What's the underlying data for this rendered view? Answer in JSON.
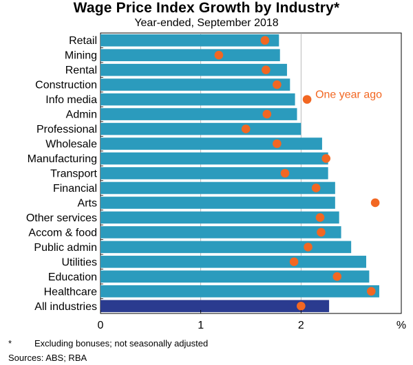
{
  "chart_data": {
    "type": "bar",
    "orientation": "horizontal",
    "title": "Wage Price Index Growth by Industry*",
    "subtitle": "Year-ended, September 2018",
    "categories": [
      "Retail",
      "Mining",
      "Rental",
      "Construction",
      "Info media",
      "Admin",
      "Professional",
      "Wholesale",
      "Manufacturing",
      "Transport",
      "Financial",
      "Arts",
      "Other services",
      "Accom & food",
      "Public admin",
      "Utilities",
      "Education",
      "Healthcare",
      "All industries"
    ],
    "series": [
      {
        "name": "Year-ended, September 2018",
        "type": "bar",
        "values": [
          1.78,
          1.79,
          1.86,
          1.89,
          1.94,
          1.96,
          2.0,
          2.21,
          2.27,
          2.27,
          2.34,
          2.34,
          2.38,
          2.4,
          2.5,
          2.65,
          2.68,
          2.78,
          2.28
        ]
      },
      {
        "name": "One year ago",
        "type": "dot",
        "values": [
          1.64,
          1.18,
          1.65,
          1.76,
          null,
          1.66,
          1.45,
          1.76,
          2.25,
          1.84,
          2.15,
          2.74,
          2.19,
          2.2,
          2.07,
          1.93,
          2.36,
          2.7,
          2.0
        ]
      }
    ],
    "highlight_category": "All industries",
    "xlabel": "%",
    "xlim": [
      0,
      3
    ],
    "xticks": [
      "0",
      "1",
      "2"
    ],
    "legend_annotation": {
      "label": "One year ago",
      "x": 2.06,
      "category_between": [
        "Info media"
      ]
    },
    "colors": {
      "bar": "#2b9bbd",
      "bar_highlight": "#2a3b8f",
      "dot": "#f26722",
      "grid": "#aaaaaa",
      "annotation": "#f26722"
    }
  },
  "footnote": {
    "mark": "*",
    "text": "Excluding bonuses; not seasonally adjusted"
  },
  "sources": "Sources: ABS; RBA"
}
